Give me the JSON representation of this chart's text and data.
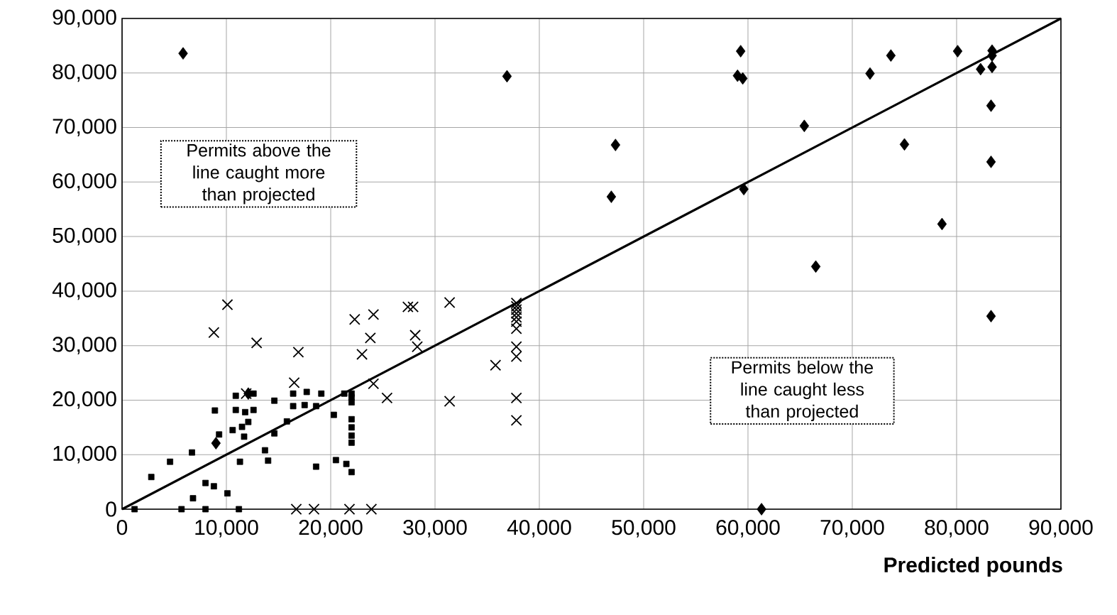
{
  "chart_data": {
    "type": "scatter",
    "xlabel": "Predicted pounds",
    "annotations": [
      "Permits above the line caught more than projected",
      "Permits below the line caught less than projected"
    ],
    "xlim": [
      0,
      90000
    ],
    "ylim": [
      0,
      90000
    ],
    "xticks": [
      0,
      {
        "value": 10000,
        "label": "10,000"
      },
      {
        "value": 20000,
        "label": "20,000"
      },
      {
        "value": 30000,
        "label": "30,000"
      },
      {
        "value": 40000,
        "label": "40,000"
      },
      {
        "value": 50000,
        "label": "50,000"
      },
      {
        "value": 60000,
        "label": "60,000"
      },
      {
        "value": 70000,
        "label": "70,000"
      },
      {
        "value": 80000,
        "label": "80,000"
      },
      {
        "value": 90000,
        "label": "90,000"
      }
    ],
    "yticks": [
      0,
      {
        "value": 10000,
        "label": "10,000"
      },
      {
        "value": 20000,
        "label": "20,000"
      },
      {
        "value": 30000,
        "label": "30,000"
      },
      {
        "value": 40000,
        "label": "40,000"
      },
      {
        "value": 50000,
        "label": "50,000"
      },
      {
        "value": 60000,
        "label": "60,000"
      },
      {
        "value": 70000,
        "label": "70,000"
      },
      {
        "value": 80000,
        "label": "80,000"
      },
      {
        "value": 90000,
        "label": "90,000"
      }
    ],
    "grid": true,
    "series": [
      {
        "color": "#000000",
        "marker": "diamond",
        "x": [
          5850,
          36900,
          59300,
          59000,
          59500,
          47300,
          46900,
          59600,
          65400,
          66500,
          71700,
          73700,
          75000,
          78600,
          80100,
          82300,
          83400,
          83400,
          83400,
          83300,
          83300,
          83300,
          61300,
          9000,
          12100
        ],
        "values": [
          83600,
          79400,
          84000,
          79500,
          79000,
          66800,
          57300,
          58700,
          70300,
          44500,
          79900,
          83200,
          66900,
          52300,
          84000,
          80700,
          84100,
          83200,
          81100,
          74000,
          63700,
          35400,
          0,
          12100,
          21200
        ]
      },
      {
        "color": "#000000",
        "marker": "cross",
        "x": [
          10100,
          8800,
          12900,
          16900,
          16500,
          11900,
          22300,
          24100,
          23800,
          23000,
          24100,
          25400,
          27400,
          27900,
          28100,
          28300,
          31400,
          31400,
          35800,
          37800,
          37800,
          37800,
          37800,
          37800,
          37800,
          37800,
          37800,
          37800,
          37800,
          37800,
          16700,
          18400,
          21800,
          23900
        ],
        "values": [
          37500,
          32400,
          30500,
          28800,
          23200,
          21200,
          34800,
          35700,
          31400,
          28400,
          23000,
          20400,
          37100,
          37100,
          31900,
          29800,
          37900,
          19800,
          26400,
          37800,
          37200,
          36600,
          35900,
          35200,
          34400,
          33100,
          29800,
          28000,
          20400,
          16300,
          0,
          0,
          0,
          0
        ]
      },
      {
        "color": "#000000",
        "marker": "square",
        "x": [
          10900,
          12600,
          8900,
          10900,
          11800,
          12600,
          12100,
          11500,
          10600,
          9300,
          11700,
          6700,
          4600,
          2800,
          8000,
          8800,
          10100,
          6800,
          14600,
          16400,
          17700,
          19100,
          16400,
          17500,
          18600,
          15800,
          14600,
          13700,
          14000,
          11300,
          20300,
          18600,
          20500,
          21500,
          22000,
          21300,
          22000,
          22000,
          22000,
          22000,
          22000,
          22000,
          22000,
          5700,
          8000,
          11200,
          1200
        ],
        "values": [
          20800,
          21200,
          18100,
          18200,
          17800,
          18200,
          16000,
          15100,
          14500,
          13700,
          13300,
          10400,
          8700,
          5900,
          4800,
          4200,
          2900,
          2000,
          19900,
          21200,
          21500,
          21200,
          18900,
          19100,
          18900,
          16100,
          13900,
          10800,
          8900,
          8700,
          17300,
          7800,
          9000,
          8300,
          6800,
          21200,
          21200,
          20500,
          19600,
          16500,
          15000,
          13500,
          12200,
          0,
          0,
          0,
          0
        ]
      },
      {
        "type": "line",
        "color": "#000000",
        "marker": "none",
        "line_style": "solid",
        "x": [
          0,
          90000
        ],
        "values": [
          0,
          90000
        ]
      }
    ]
  }
}
